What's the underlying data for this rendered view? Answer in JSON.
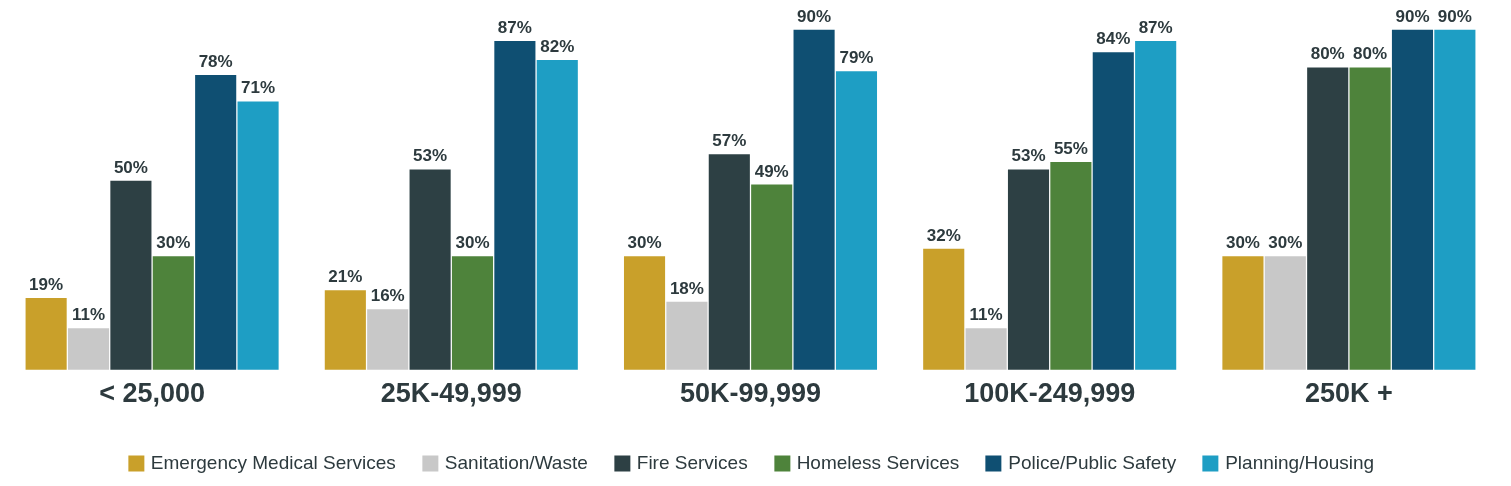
{
  "chart_data": {
    "type": "bar",
    "categories": [
      "< 25,000",
      "25K-49,999",
      "50K-99,999",
      "100K-249,999",
      "250K +"
    ],
    "series": [
      {
        "name": "Emergency Medical Services",
        "color": "#c9a02a",
        "values": [
          19,
          21,
          30,
          32,
          30
        ],
        "value_labels": [
          "19%",
          "21%",
          "30%",
          "32%",
          "30%"
        ]
      },
      {
        "name": "Sanitation/Waste",
        "color": "#c8c8c8",
        "values": [
          11,
          16,
          18,
          11,
          30
        ],
        "value_labels": [
          "11%",
          "16%",
          "18%",
          "11%",
          "30%"
        ]
      },
      {
        "name": "Fire Services",
        "color": "#2d4044",
        "values": [
          50,
          53,
          57,
          53,
          80
        ],
        "value_labels": [
          "50%",
          "53%",
          "57%",
          "53%",
          "80%"
        ]
      },
      {
        "name": "Homeless Services",
        "color": "#4e833b",
        "values": [
          30,
          30,
          49,
          55,
          80
        ],
        "value_labels": [
          "30%",
          "30%",
          "49%",
          "55%",
          "80%"
        ]
      },
      {
        "name": "Police/Public Safety",
        "color": "#0f4f72",
        "values": [
          78,
          87,
          90,
          84,
          90
        ],
        "value_labels": [
          "78%",
          "87%",
          "90%",
          "84%",
          "90%"
        ]
      },
      {
        "name": "Planning/Housing",
        "color": "#1e9ec4",
        "values": [
          71,
          82,
          79,
          87,
          90
        ],
        "value_labels": [
          "71%",
          "82%",
          "79%",
          "87%",
          "90%"
        ]
      }
    ],
    "legend": "bottom"
  }
}
